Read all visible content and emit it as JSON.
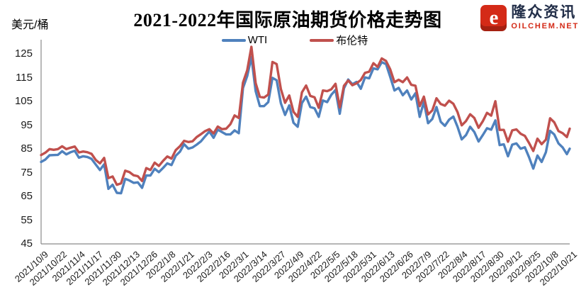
{
  "logo": {
    "brand": "隆众资讯",
    "domain": "OILCHEM.NET",
    "icon": "oilchem-e-mark",
    "icon_letter": "e",
    "icon_color": "#d42a17",
    "brand_color": "#232f49",
    "domain_color": "#d42a17"
  },
  "chart_data": {
    "type": "line",
    "title": "2021-2022年国际原油期货价格走势图",
    "ylabel": "美元/桶",
    "xlabel": "",
    "ylim": [
      45,
      130
    ],
    "yticks": [
      125,
      115,
      105,
      95,
      85,
      75,
      65,
      55,
      45
    ],
    "grid": false,
    "legend_position": "top-center",
    "axis_color": "#8a8a8a",
    "x_total_days": 377,
    "xtick_interval_days": 13,
    "xtick_labels": [
      "2021/10/9",
      "2021/10/22",
      "2021/11/4",
      "2021/11/17",
      "2021/11/30",
      "2021/12/13",
      "2021/12/26",
      "2022/1/8",
      "2022/1/21",
      "2022/2/3",
      "2022/2/16",
      "2022/3/1",
      "2022/3/14",
      "2022/3/27",
      "2022/4/9",
      "2022/4/22",
      "2022/5/5",
      "2022/5/18",
      "2022/5/31",
      "2022/6/13",
      "2022/6/26",
      "2022/7/9",
      "2022/7/22",
      "2022/8/4",
      "2022/8/17",
      "2022/8/30",
      "2022/9/12",
      "2022/9/25",
      "2022/10/8",
      "2022/10/21"
    ],
    "days": [
      0,
      3,
      6,
      9,
      12,
      15,
      18,
      21,
      24,
      27,
      30,
      33,
      36,
      39,
      42,
      45,
      48,
      51,
      54,
      57,
      60,
      63,
      66,
      69,
      72,
      75,
      78,
      81,
      84,
      87,
      90,
      93,
      96,
      99,
      102,
      105,
      108,
      111,
      114,
      117,
      120,
      123,
      126,
      129,
      132,
      135,
      138,
      141,
      144,
      147,
      150,
      153,
      156,
      159,
      162,
      165,
      168,
      171,
      174,
      177,
      180,
      183,
      186,
      189,
      192,
      195,
      198,
      201,
      204,
      207,
      210,
      213,
      216,
      219,
      222,
      225,
      228,
      231,
      234,
      237,
      240,
      243,
      246,
      249,
      252,
      255,
      258,
      261,
      264,
      267,
      270,
      273,
      276,
      279,
      282,
      285,
      288,
      291,
      294,
      297,
      300,
      303,
      306,
      309,
      312,
      315,
      318,
      321,
      324,
      327,
      330,
      333,
      336,
      339,
      342,
      345,
      348,
      351,
      354,
      357,
      360,
      363,
      366,
      369,
      372,
      375,
      377
    ],
    "series": [
      {
        "name": "WTI",
        "color": "#4F81BD",
        "values": [
          79.5,
          80.5,
          82.3,
          82.4,
          82.5,
          84.0,
          82.7,
          83.6,
          84.2,
          81.3,
          81.9,
          81.6,
          80.8,
          78.4,
          76.1,
          78.5,
          68.2,
          69.9,
          66.5,
          66.3,
          72.4,
          71.7,
          70.7,
          70.9,
          68.6,
          73.8,
          73.8,
          76.6,
          75.2,
          77.0,
          78.9,
          78.2,
          82.1,
          83.8,
          87.0,
          85.1,
          85.6,
          86.8,
          88.2,
          90.3,
          92.3,
          89.7,
          93.1,
          92.1,
          91.1,
          91.1,
          92.8,
          91.6,
          110.6,
          115.7,
          123.7,
          109.3,
          103.0,
          103.0,
          104.7,
          114.9,
          113.9,
          104.2,
          99.3,
          103.3,
          96.0,
          94.3,
          104.3,
          107.0,
          102.6,
          102.1,
          98.5,
          105.4,
          104.7,
          107.8,
          109.8,
          99.8,
          110.5,
          114.2,
          112.2,
          113.2,
          110.3,
          115.1,
          114.7,
          118.9,
          118.5,
          121.5,
          120.7,
          115.3,
          109.6,
          110.7,
          107.6,
          109.6,
          105.8,
          108.4,
          98.5,
          104.8,
          95.8,
          97.6,
          102.6,
          96.4,
          94.7,
          97.3,
          98.6,
          94.3,
          89.0,
          90.8,
          94.3,
          92.1,
          88.1,
          90.8,
          93.7,
          93.1,
          97.0,
          86.6,
          86.9,
          81.9,
          86.8,
          87.3,
          85.1,
          85.7,
          81.5,
          76.7,
          82.2,
          79.5,
          83.6,
          92.6,
          91.1,
          87.3,
          85.6,
          82.8,
          85.1
        ]
      },
      {
        "name": "布伦特",
        "color": "#C0504D",
        "values": [
          82.4,
          83.4,
          84.9,
          84.6,
          84.9,
          86.1,
          84.9,
          85.5,
          86.0,
          83.5,
          83.9,
          83.6,
          82.9,
          80.3,
          78.9,
          81.2,
          72.7,
          73.4,
          69.9,
          70.5,
          75.8,
          75.2,
          73.9,
          73.5,
          71.5,
          76.9,
          76.1,
          79.2,
          77.8,
          80.0,
          81.8,
          80.9,
          84.5,
          86.1,
          88.4,
          87.9,
          88.2,
          90.0,
          91.2,
          92.5,
          93.3,
          91.5,
          94.4,
          93.3,
          93.5,
          95.4,
          99.1,
          98.0,
          112.9,
          118.1,
          128.0,
          112.7,
          106.9,
          106.6,
          107.9,
          121.6,
          120.7,
          110.2,
          104.4,
          107.5,
          100.6,
          98.5,
          108.8,
          111.7,
          107.3,
          106.7,
          102.3,
          109.6,
          109.3,
          110.1,
          112.4,
          102.5,
          111.6,
          113.8,
          111.8,
          112.6,
          114.0,
          117.0,
          117.5,
          121.1,
          119.5,
          123.1,
          122.0,
          118.5,
          113.1,
          114.1,
          113.1,
          115.1,
          112.0,
          111.6,
          103.0,
          107.0,
          99.5,
          101.2,
          106.3,
          103.9,
          103.2,
          105.3,
          104.0,
          100.5,
          94.9,
          96.7,
          99.6,
          98.0,
          93.9,
          96.6,
          100.2,
          99.0,
          105.1,
          93.0,
          93.0,
          88.0,
          92.8,
          93.2,
          91.4,
          90.5,
          87.5,
          84.1,
          89.3,
          87.0,
          88.9,
          97.9,
          96.2,
          92.5,
          91.6,
          90.0,
          93.5
        ]
      }
    ]
  }
}
